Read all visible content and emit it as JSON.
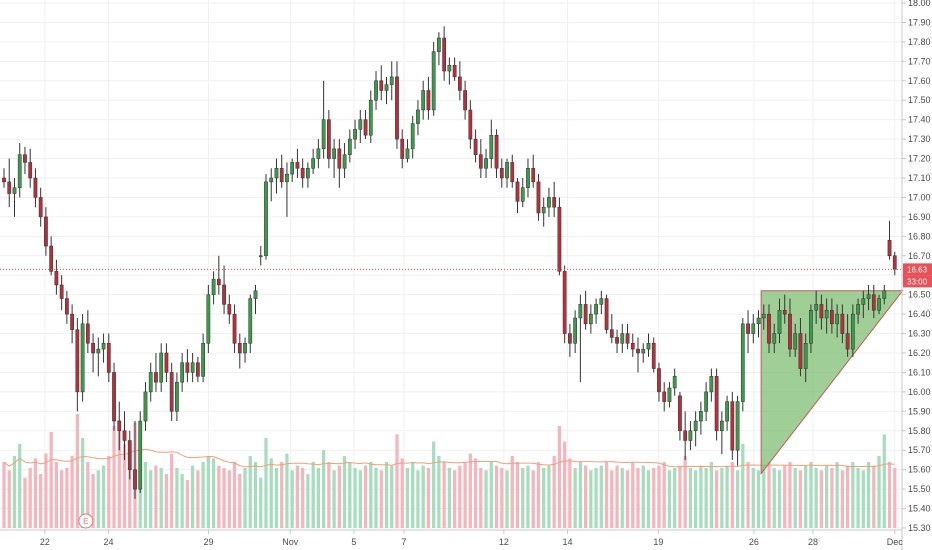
{
  "chart_data": {
    "type": "candlestick",
    "y_axis": {
      "ylim": [
        15.3,
        18.0
      ],
      "ticks": [
        "15.30",
        "15.40",
        "15.50",
        "15.60",
        "15.70",
        "15.80",
        "15.90",
        "16.00",
        "16.10",
        "16.20",
        "16.30",
        "16.40",
        "16.50",
        "16.60",
        "16.70",
        "16.80",
        "16.90",
        "17.00",
        "17.10",
        "17.20",
        "17.30",
        "17.40",
        "17.50",
        "17.60",
        "17.70",
        "17.80",
        "17.90",
        "18.00"
      ],
      "position": "right"
    },
    "x_axis": {
      "ticks": [
        "22",
        "24",
        "29",
        "Nov",
        "5",
        "7",
        "12",
        "14",
        "19",
        "26",
        "28",
        "Dec"
      ]
    },
    "candles": [
      [
        17.1,
        17.15,
        17.05,
        17.08
      ],
      [
        17.08,
        17.2,
        16.95,
        17.02
      ],
      [
        17.02,
        17.1,
        16.9,
        17.05
      ],
      [
        17.05,
        17.28,
        17.0,
        17.22
      ],
      [
        17.22,
        17.26,
        17.12,
        17.18
      ],
      [
        17.18,
        17.25,
        17.05,
        17.1
      ],
      [
        17.1,
        17.15,
        16.95,
        17.0
      ],
      [
        17.0,
        17.05,
        16.85,
        16.9
      ],
      [
        16.9,
        16.95,
        16.7,
        16.75
      ],
      [
        16.75,
        16.8,
        16.6,
        16.62
      ],
      [
        16.62,
        16.68,
        16.5,
        16.55
      ],
      [
        16.55,
        16.6,
        16.42,
        16.48
      ],
      [
        16.48,
        16.52,
        16.35,
        16.4
      ],
      [
        16.4,
        16.45,
        16.25,
        16.32
      ],
      [
        16.32,
        16.38,
        15.9,
        16.0
      ],
      [
        16.0,
        16.4,
        15.95,
        16.35
      ],
      [
        16.35,
        16.42,
        16.2,
        16.25
      ],
      [
        16.25,
        16.3,
        16.1,
        16.2
      ],
      [
        16.2,
        16.28,
        16.08,
        16.22
      ],
      [
        16.22,
        16.3,
        16.15,
        16.25
      ],
      [
        16.25,
        16.3,
        16.05,
        16.1
      ],
      [
        16.1,
        16.15,
        15.8,
        15.85
      ],
      [
        15.85,
        15.95,
        15.7,
        15.8
      ],
      [
        15.8,
        15.9,
        15.65,
        15.75
      ],
      [
        15.75,
        15.8,
        15.55,
        15.6
      ],
      [
        15.6,
        15.85,
        15.45,
        15.5
      ],
      [
        15.5,
        15.9,
        15.48,
        15.85
      ],
      [
        15.85,
        16.05,
        15.8,
        16.0
      ],
      [
        16.0,
        16.15,
        15.95,
        16.1
      ],
      [
        16.1,
        16.2,
        16.0,
        16.05
      ],
      [
        16.05,
        16.25,
        16.0,
        16.2
      ],
      [
        16.2,
        16.25,
        16.05,
        16.1
      ],
      [
        16.1,
        16.15,
        15.85,
        15.9
      ],
      [
        15.9,
        16.1,
        15.85,
        16.05
      ],
      [
        16.05,
        16.2,
        16.0,
        16.15
      ],
      [
        16.15,
        16.22,
        16.05,
        16.1
      ],
      [
        16.1,
        16.2,
        16.05,
        16.15
      ],
      [
        16.15,
        16.18,
        16.05,
        16.08
      ],
      [
        16.08,
        16.3,
        16.05,
        16.25
      ],
      [
        16.25,
        16.55,
        16.2,
        16.5
      ],
      [
        16.5,
        16.62,
        16.45,
        16.58
      ],
      [
        16.58,
        16.7,
        16.5,
        16.55
      ],
      [
        16.55,
        16.65,
        16.4,
        16.45
      ],
      [
        16.45,
        16.5,
        16.35,
        16.4
      ],
      [
        16.4,
        16.45,
        16.2,
        16.25
      ],
      [
        16.25,
        16.3,
        16.12,
        16.2
      ],
      [
        16.2,
        16.28,
        16.15,
        16.25
      ],
      [
        16.25,
        16.5,
        16.2,
        16.48
      ],
      [
        16.48,
        16.55,
        16.4,
        16.52
      ],
      [
        16.7,
        16.75,
        16.65,
        16.7
      ],
      [
        16.7,
        17.12,
        16.68,
        17.08
      ],
      [
        17.08,
        17.15,
        16.98,
        17.1
      ],
      [
        17.1,
        17.2,
        17.02,
        17.15
      ],
      [
        17.15,
        17.22,
        17.05,
        17.08
      ],
      [
        17.08,
        17.18,
        16.9,
        17.12
      ],
      [
        17.12,
        17.2,
        17.08,
        17.18
      ],
      [
        17.18,
        17.25,
        17.1,
        17.15
      ],
      [
        17.15,
        17.2,
        17.05,
        17.1
      ],
      [
        17.1,
        17.18,
        17.05,
        17.15
      ],
      [
        17.15,
        17.25,
        17.12,
        17.2
      ],
      [
        17.2,
        17.3,
        17.15,
        17.25
      ],
      [
        17.25,
        17.6,
        17.2,
        17.4
      ],
      [
        17.4,
        17.45,
        17.15,
        17.2
      ],
      [
        17.2,
        17.3,
        17.1,
        17.25
      ],
      [
        17.25,
        17.3,
        17.05,
        17.15
      ],
      [
        17.15,
        17.28,
        17.1,
        17.22
      ],
      [
        17.22,
        17.35,
        17.18,
        17.3
      ],
      [
        17.3,
        17.4,
        17.25,
        17.35
      ],
      [
        17.35,
        17.45,
        17.28,
        17.4
      ],
      [
        17.4,
        17.45,
        17.3,
        17.32
      ],
      [
        17.32,
        17.55,
        17.28,
        17.5
      ],
      [
        17.5,
        17.65,
        17.45,
        17.6
      ],
      [
        17.6,
        17.68,
        17.5,
        17.55
      ],
      [
        17.55,
        17.62,
        17.48,
        17.58
      ],
      [
        17.58,
        17.7,
        17.5,
        17.62
      ],
      [
        17.62,
        17.7,
        17.25,
        17.3
      ],
      [
        17.3,
        17.35,
        17.15,
        17.2
      ],
      [
        17.2,
        17.3,
        17.18,
        17.25
      ],
      [
        17.25,
        17.42,
        17.2,
        17.38
      ],
      [
        17.38,
        17.5,
        17.32,
        17.45
      ],
      [
        17.45,
        17.6,
        17.4,
        17.55
      ],
      [
        17.55,
        17.62,
        17.4,
        17.45
      ],
      [
        17.45,
        17.8,
        17.42,
        17.75
      ],
      [
        17.75,
        17.85,
        17.68,
        17.82
      ],
      [
        17.82,
        17.88,
        17.6,
        17.65
      ],
      [
        17.65,
        17.72,
        17.58,
        17.68
      ],
      [
        17.68,
        17.72,
        17.6,
        17.62
      ],
      [
        17.62,
        17.7,
        17.5,
        17.55
      ],
      [
        17.55,
        17.6,
        17.4,
        17.45
      ],
      [
        17.45,
        17.5,
        17.25,
        17.3
      ],
      [
        17.3,
        17.35,
        17.18,
        17.22
      ],
      [
        17.22,
        17.3,
        17.1,
        17.15
      ],
      [
        17.15,
        17.25,
        17.1,
        17.2
      ],
      [
        17.2,
        17.4,
        17.15,
        17.32
      ],
      [
        17.32,
        17.35,
        17.1,
        17.15
      ],
      [
        17.15,
        17.2,
        17.05,
        17.1
      ],
      [
        17.1,
        17.2,
        17.05,
        17.18
      ],
      [
        17.18,
        17.22,
        17.05,
        17.08
      ],
      [
        17.08,
        17.1,
        16.92,
        16.98
      ],
      [
        16.98,
        17.1,
        16.95,
        17.05
      ],
      [
        17.05,
        17.2,
        17.0,
        17.15
      ],
      [
        17.15,
        17.22,
        17.05,
        17.08
      ],
      [
        17.08,
        17.12,
        16.88,
        16.92
      ],
      [
        16.92,
        17.0,
        16.85,
        16.95
      ],
      [
        16.95,
        17.05,
        16.9,
        17.0
      ],
      [
        17.0,
        17.08,
        16.9,
        16.95
      ],
      [
        16.95,
        17.0,
        16.6,
        16.62
      ],
      [
        16.62,
        16.65,
        16.25,
        16.3
      ],
      [
        16.3,
        16.35,
        16.18,
        16.25
      ],
      [
        16.25,
        16.42,
        16.2,
        16.38
      ],
      [
        16.38,
        16.5,
        16.05,
        16.45
      ],
      [
        16.45,
        16.52,
        16.32,
        16.35
      ],
      [
        16.35,
        16.45,
        16.3,
        16.4
      ],
      [
        16.4,
        16.48,
        16.35,
        16.45
      ],
      [
        16.45,
        16.52,
        16.4,
        16.48
      ],
      [
        16.48,
        16.5,
        16.3,
        16.32
      ],
      [
        16.32,
        16.4,
        16.25,
        16.28
      ],
      [
        16.28,
        16.32,
        16.2,
        16.25
      ],
      [
        16.25,
        16.35,
        16.2,
        16.3
      ],
      [
        16.3,
        16.35,
        16.22,
        16.25
      ],
      [
        16.25,
        16.3,
        16.18,
        16.22
      ],
      [
        16.22,
        16.28,
        16.1,
        16.2
      ],
      [
        16.2,
        16.25,
        16.15,
        16.22
      ],
      [
        16.22,
        16.3,
        16.18,
        16.25
      ],
      [
        16.25,
        16.28,
        16.1,
        16.12
      ],
      [
        16.12,
        16.15,
        15.95,
        16.0
      ],
      [
        16.0,
        16.05,
        15.9,
        15.95
      ],
      [
        15.95,
        16.05,
        15.92,
        16.02
      ],
      [
        16.02,
        16.12,
        15.98,
        16.08
      ],
      [
        15.98,
        16.0,
        15.75,
        15.8
      ],
      [
        15.8,
        15.9,
        15.65,
        15.75
      ],
      [
        15.75,
        15.85,
        15.7,
        15.8
      ],
      [
        15.8,
        15.9,
        15.72,
        15.85
      ],
      [
        15.85,
        15.95,
        15.78,
        15.9
      ],
      [
        15.9,
        16.05,
        15.85,
        16.0
      ],
      [
        16.0,
        16.12,
        15.95,
        16.08
      ],
      [
        16.08,
        16.12,
        15.75,
        15.8
      ],
      [
        15.8,
        15.9,
        15.68,
        15.85
      ],
      [
        15.85,
        15.98,
        15.8,
        15.95
      ],
      [
        15.95,
        16.0,
        15.65,
        15.7
      ],
      [
        15.7,
        15.98,
        15.62,
        15.95
      ],
      [
        15.95,
        16.38,
        15.9,
        16.35
      ],
      [
        16.35,
        16.42,
        16.2,
        16.3
      ],
      [
        16.3,
        16.4,
        16.25,
        16.35
      ],
      [
        16.35,
        16.42,
        16.28,
        16.38
      ],
      [
        16.38,
        16.45,
        16.32,
        16.4
      ],
      [
        16.4,
        16.45,
        16.2,
        16.25
      ],
      [
        16.25,
        16.35,
        16.2,
        16.3
      ],
      [
        16.3,
        16.48,
        16.25,
        16.42
      ],
      [
        16.42,
        16.5,
        16.35,
        16.4
      ],
      [
        16.4,
        16.48,
        16.18,
        16.22
      ],
      [
        16.22,
        16.35,
        16.18,
        16.3
      ],
      [
        16.3,
        16.38,
        16.08,
        16.12
      ],
      [
        16.12,
        16.3,
        16.05,
        16.25
      ],
      [
        16.25,
        16.45,
        16.2,
        16.42
      ],
      [
        16.42,
        16.52,
        16.35,
        16.45
      ],
      [
        16.45,
        16.5,
        16.32,
        16.38
      ],
      [
        16.38,
        16.48,
        16.3,
        16.42
      ],
      [
        16.42,
        16.48,
        16.3,
        16.35
      ],
      [
        16.35,
        16.45,
        16.28,
        16.4
      ],
      [
        16.4,
        16.45,
        16.25,
        16.3
      ],
      [
        16.3,
        16.4,
        16.18,
        16.22
      ],
      [
        16.22,
        16.45,
        16.18,
        16.4
      ],
      [
        16.4,
        16.48,
        16.35,
        16.45
      ],
      [
        16.45,
        16.52,
        16.38,
        16.48
      ],
      [
        16.48,
        16.55,
        16.42,
        16.5
      ],
      [
        16.5,
        16.55,
        16.38,
        16.42
      ],
      [
        16.42,
        16.5,
        16.4,
        16.48
      ],
      [
        16.48,
        16.55,
        16.45,
        16.52
      ],
      [
        16.78,
        16.88,
        16.68,
        16.7
      ],
      [
        16.7,
        16.72,
        16.6,
        16.63
      ]
    ],
    "current_price": 16.63,
    "price_label": "16.63",
    "countdown_label": "33:00",
    "volume_max": 100,
    "volume": [
      55,
      48,
      60,
      70,
      42,
      50,
      58,
      45,
      62,
      80,
      55,
      48,
      50,
      60,
      95,
      75,
      55,
      45,
      48,
      52,
      60,
      85,
      90,
      70,
      65,
      88,
      72,
      55,
      48,
      52,
      50,
      45,
      62,
      50,
      45,
      40,
      52,
      48,
      55,
      60,
      58,
      52,
      50,
      48,
      55,
      45,
      50,
      60,
      55,
      42,
      75,
      58,
      50,
      55,
      62,
      48,
      52,
      50,
      45,
      55,
      50,
      65,
      55,
      48,
      52,
      60,
      55,
      50,
      48,
      52,
      55,
      50,
      48,
      55,
      52,
      78,
      58,
      50,
      55,
      48,
      52,
      50,
      72,
      60,
      55,
      50,
      48,
      52,
      55,
      62,
      58,
      50,
      48,
      55,
      52,
      50,
      48,
      60,
      55,
      50,
      52,
      48,
      55,
      50,
      52,
      60,
      85,
      72,
      58,
      50,
      55,
      52,
      48,
      50,
      52,
      55,
      48,
      52,
      50,
      48,
      55,
      50,
      52,
      48,
      50,
      52,
      55,
      48,
      50,
      52,
      60,
      50,
      48,
      52,
      50,
      55,
      48,
      50,
      52,
      55,
      48,
      70,
      55,
      50,
      48,
      52,
      55,
      50,
      48,
      52,
      55,
      50,
      48,
      52,
      55,
      50,
      48,
      52,
      50,
      55,
      48,
      52,
      55,
      50,
      48,
      55,
      52,
      60,
      78,
      55,
      50,
      52
    ],
    "pattern": {
      "type": "ascending triangle",
      "resistance": 16.52,
      "apex_index": 175,
      "start_index": 145,
      "start_low": 15.58,
      "fill": "#7fbf73",
      "stroke": "#c45858"
    },
    "moving_average_color": "#f2a07a",
    "colors": {
      "up": "#3c9b4a",
      "down": "#b5303c",
      "volume_up": "#a7dcbf",
      "volume_down": "#f4b5bd",
      "price_line": "#d9534f",
      "badge": "#e8505a"
    },
    "earnings_marker": {
      "label": "E",
      "index": 18
    },
    "grid": true
  }
}
